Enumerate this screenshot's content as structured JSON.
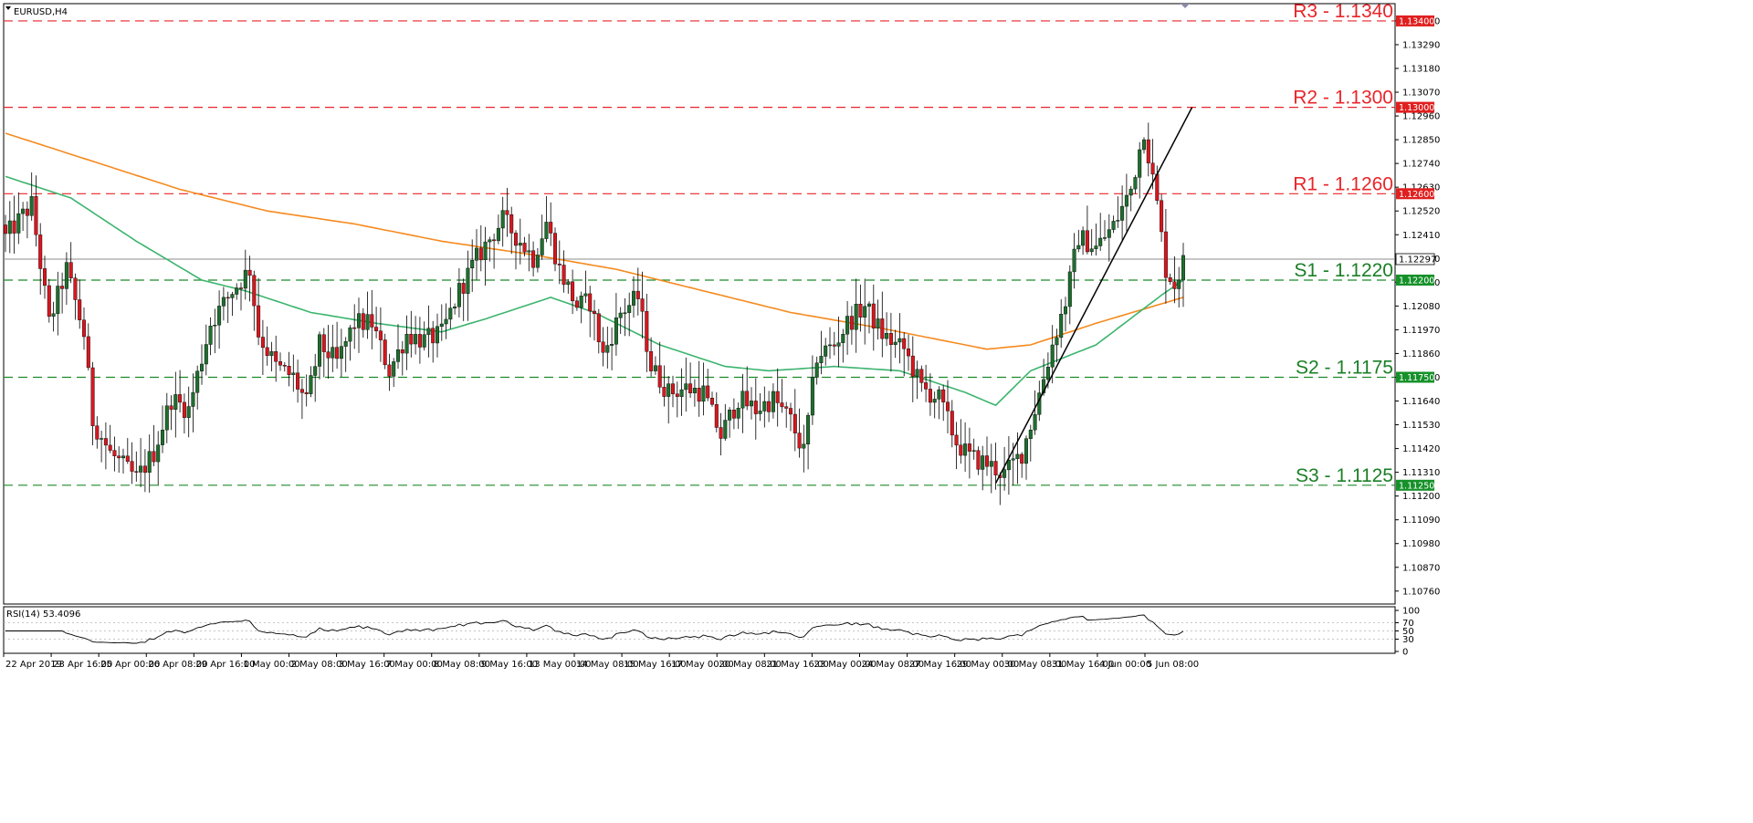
{
  "chart_data": {
    "type": "candlestick",
    "symbol": "EURUSD,H4",
    "price_axis": {
      "ylim": [
        1.107,
        1.1348
      ],
      "ticks": [
        "1.13400",
        "1.13290",
        "1.13180",
        "1.13070",
        "1.12960",
        "1.12850",
        "1.12740",
        "1.12630",
        "1.12520",
        "1.12410",
        "1.12300",
        "1.12190",
        "1.12080",
        "1.11970",
        "1.11860",
        "1.11750",
        "1.11640",
        "1.11530",
        "1.11420",
        "1.11310",
        "1.11200",
        "1.11090",
        "1.10980",
        "1.10870",
        "1.10760"
      ]
    },
    "time_axis": {
      "labels": [
        "22 Apr 2019",
        "23 Apr 16:00",
        "25 Apr 00:00",
        "26 Apr 08:00",
        "29 Apr 16:00",
        "1 May 00:00",
        "2 May 08:00",
        "3 May 16:00",
        "7 May 00:00",
        "8 May 08:00",
        "9 May 16:00",
        "13 May 00:00",
        "14 May 08:00",
        "15 May 16:00",
        "17 May 00:00",
        "20 May 08:00",
        "21 May 16:00",
        "23 May 00:00",
        "24 May 08:00",
        "27 May 16:00",
        "29 May 00:00",
        "30 May 08:00",
        "31 May 16:00",
        "4 Jun 00:00",
        "5 Jun 08:00"
      ]
    },
    "levels": [
      {
        "label": "R3 - 1.1340",
        "value": 1.134,
        "tag": "1.13400",
        "type": "resistance"
      },
      {
        "label": "R2 - 1.1300",
        "value": 1.13,
        "tag": "1.13000",
        "type": "resistance"
      },
      {
        "label": "R1 - 1.1260",
        "value": 1.126,
        "tag": "1.12600",
        "type": "resistance"
      },
      {
        "label": "S1 - 1.1220",
        "value": 1.122,
        "tag": "1.12200",
        "type": "support"
      },
      {
        "label": "S2 - 1.1175",
        "value": 1.1175,
        "tag": "1.11750",
        "type": "support"
      },
      {
        "label": "S3 - 1.1125",
        "value": 1.1125,
        "tag": "1.11250",
        "type": "support"
      }
    ],
    "current_price": {
      "value": 1.12297,
      "tag": "1.12297"
    },
    "close_path": [
      [
        0,
        1.124
      ],
      [
        6,
        1.1255
      ],
      [
        10,
        1.12
      ],
      [
        14,
        1.1225
      ],
      [
        18,
        1.1195
      ],
      [
        20,
        1.1155
      ],
      [
        24,
        1.114
      ],
      [
        30,
        1.1128
      ],
      [
        34,
        1.114
      ],
      [
        38,
        1.1165
      ],
      [
        42,
        1.116
      ],
      [
        47,
        1.12
      ],
      [
        52,
        1.1215
      ],
      [
        56,
        1.1225
      ],
      [
        58,
        1.1195
      ],
      [
        62,
        1.118
      ],
      [
        66,
        1.1175
      ],
      [
        69,
        1.1163
      ],
      [
        72,
        1.119
      ],
      [
        76,
        1.1182
      ],
      [
        80,
        1.12
      ],
      [
        84,
        1.12
      ],
      [
        88,
        1.1178
      ],
      [
        92,
        1.1195
      ],
      [
        96,
        1.1192
      ],
      [
        100,
        1.1195
      ],
      [
        104,
        1.1215
      ],
      [
        108,
        1.123
      ],
      [
        114,
        1.1248
      ],
      [
        118,
        1.1238
      ],
      [
        121,
        1.123
      ],
      [
        124,
        1.1247
      ],
      [
        127,
        1.1225
      ],
      [
        131,
        1.1208
      ],
      [
        134,
        1.121
      ],
      [
        137,
        1.1185
      ],
      [
        141,
        1.1205
      ],
      [
        145,
        1.1212
      ],
      [
        148,
        1.118
      ],
      [
        152,
        1.1168
      ],
      [
        156,
        1.117
      ],
      [
        160,
        1.1168
      ],
      [
        164,
        1.1148
      ],
      [
        168,
        1.1165
      ],
      [
        172,
        1.116
      ],
      [
        176,
        1.1165
      ],
      [
        180,
        1.1155
      ],
      [
        183,
        1.114
      ],
      [
        186,
        1.1185
      ],
      [
        190,
        1.119
      ],
      [
        193,
        1.12
      ],
      [
        197,
        1.1208
      ],
      [
        201,
        1.1195
      ],
      [
        204,
        1.119
      ],
      [
        206,
        1.1188
      ],
      [
        210,
        1.117
      ],
      [
        214,
        1.1165
      ],
      [
        218,
        1.1145
      ],
      [
        221,
        1.1138
      ],
      [
        225,
        1.1135
      ],
      [
        229,
        1.113
      ],
      [
        233,
        1.114
      ],
      [
        236,
        1.116
      ],
      [
        240,
        1.119
      ],
      [
        243,
        1.121
      ],
      [
        246,
        1.124
      ],
      [
        250,
        1.1235
      ],
      [
        254,
        1.1245
      ],
      [
        258,
        1.1262
      ],
      [
        261,
        1.129
      ],
      [
        264,
        1.1255
      ],
      [
        266,
        1.1225
      ],
      [
        268,
        1.1218
      ],
      [
        270,
        1.1228
      ]
    ],
    "sma_fast": [
      [
        0,
        1.1268
      ],
      [
        15,
        1.1258
      ],
      [
        30,
        1.1238
      ],
      [
        45,
        1.122
      ],
      [
        55,
        1.1215
      ],
      [
        70,
        1.1205
      ],
      [
        85,
        1.12
      ],
      [
        100,
        1.1196
      ],
      [
        110,
        1.1202
      ],
      [
        125,
        1.1212
      ],
      [
        135,
        1.1205
      ],
      [
        150,
        1.119
      ],
      [
        165,
        1.118
      ],
      [
        175,
        1.1178
      ],
      [
        190,
        1.118
      ],
      [
        205,
        1.1178
      ],
      [
        220,
        1.1168
      ],
      [
        227,
        1.1162
      ],
      [
        235,
        1.1178
      ],
      [
        250,
        1.119
      ],
      [
        265,
        1.1213
      ],
      [
        270,
        1.122
      ]
    ],
    "sma_slow": [
      [
        0,
        1.1288
      ],
      [
        20,
        1.1275
      ],
      [
        40,
        1.1262
      ],
      [
        60,
        1.1252
      ],
      [
        80,
        1.1246
      ],
      [
        100,
        1.1238
      ],
      [
        120,
        1.1232
      ],
      [
        140,
        1.1225
      ],
      [
        160,
        1.1215
      ],
      [
        180,
        1.1205
      ],
      [
        200,
        1.1198
      ],
      [
        215,
        1.1192
      ],
      [
        225,
        1.1188
      ],
      [
        235,
        1.119
      ],
      [
        250,
        1.12
      ],
      [
        270,
        1.1212
      ]
    ],
    "trendline": [
      [
        227,
        1.1126
      ],
      [
        272,
        1.13
      ]
    ],
    "rsi": {
      "label": "RSI(14) 53.4096",
      "period": 14,
      "value": 53.4096,
      "ylim": [
        0,
        100
      ],
      "ticks": [
        "100",
        "70",
        "50",
        "30",
        "0"
      ],
      "levels": [
        70,
        50,
        30
      ]
    }
  }
}
